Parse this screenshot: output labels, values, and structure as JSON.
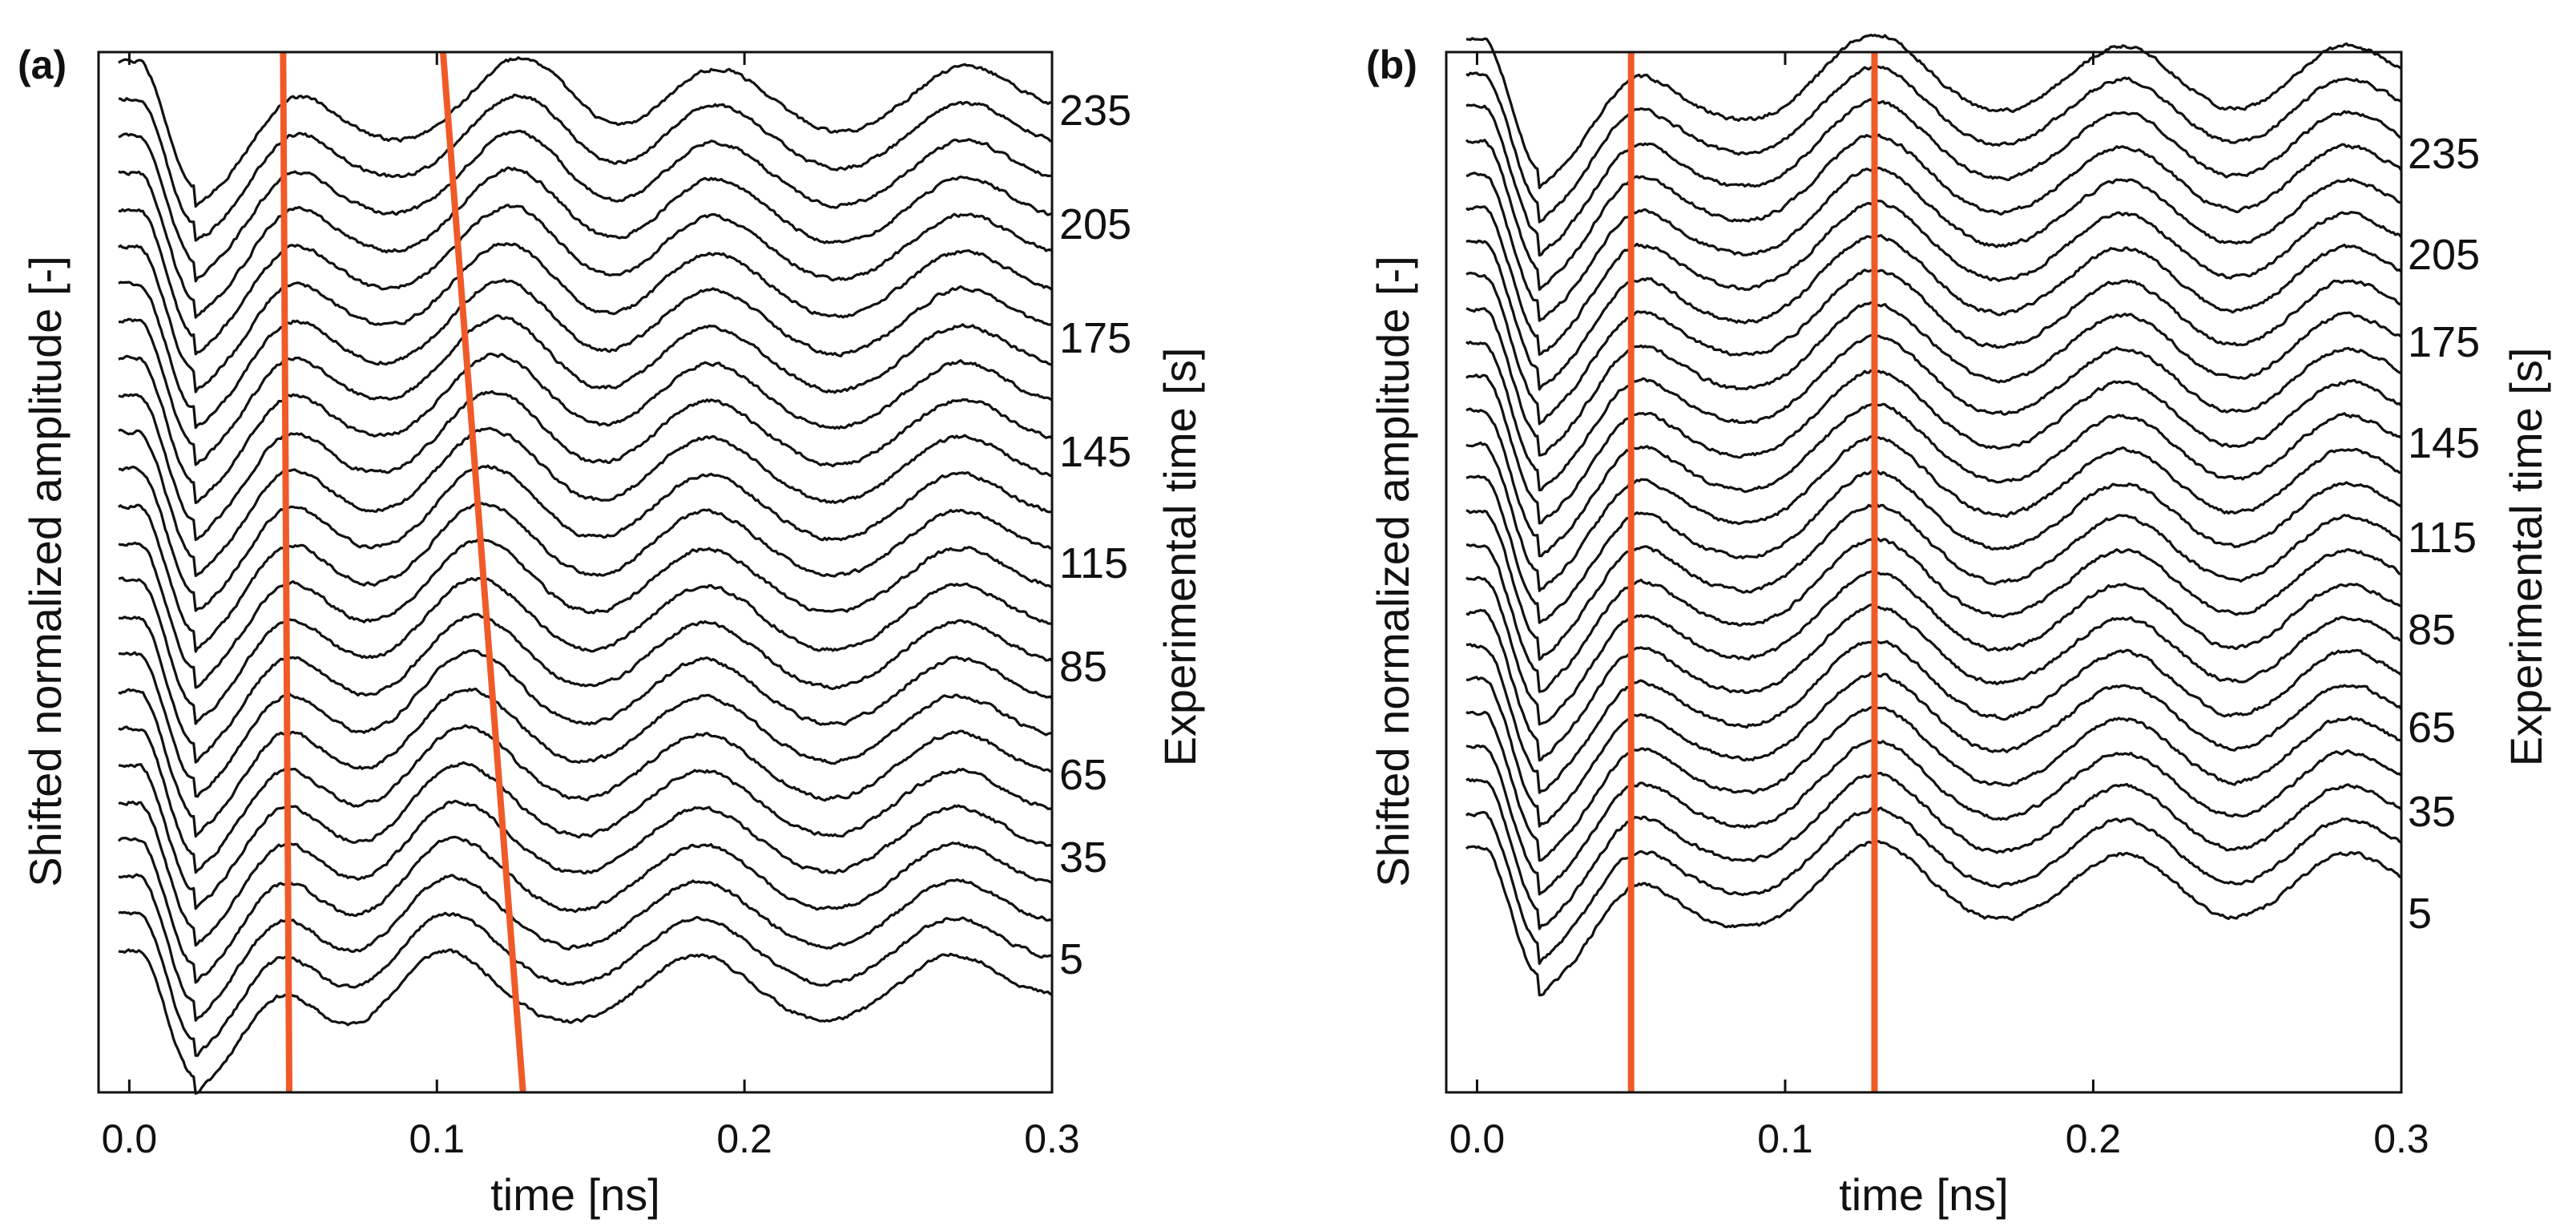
{
  "colors": {
    "trace": "#111111",
    "marker_line": "#f05a28",
    "frame": "#111111",
    "background": "#ffffff"
  },
  "chart_data": [
    {
      "type": "line",
      "panel_label": "(a)",
      "xlabel": "time [ns]",
      "ylabel": "Shifted normalized amplitude [-]",
      "right_label": "Experimental time [s]",
      "xlim": [
        -0.01,
        0.3
      ],
      "x_ticks": [
        "0.0",
        "0.1",
        "0.2",
        "0.3"
      ],
      "x_tick_values": [
        0.0,
        0.1,
        0.2,
        0.3
      ],
      "right_ticks": [
        "235",
        "205",
        "175",
        "145",
        "115",
        "85",
        "65",
        "35",
        "5"
      ],
      "right_tick_values": [
        235,
        205,
        175,
        145,
        115,
        85,
        65,
        35,
        5
      ],
      "trace_count": 25,
      "experimental_time_range": [
        5,
        240
      ],
      "vertical_lines": [
        {
          "x_start": 0.05,
          "x_end": 0.052
        },
        {
          "x_start": 0.102,
          "x_end": 0.128
        }
      ],
      "trace_model": {
        "peaks_early": [
          0.003,
          0.048,
          0.101,
          0.185,
          0.268
        ],
        "peaks_late": [
          0.003,
          0.052,
          0.128,
          0.19,
          0.272
        ],
        "shift_per_trace": 0.112,
        "noise": 0.03
      }
    },
    {
      "type": "line",
      "panel_label": "(b)",
      "xlabel": "time [ns]",
      "ylabel": "Shifted normalized amplitude [-]",
      "right_label": "Experimental time [s]",
      "xlim": [
        -0.01,
        0.3
      ],
      "x_ticks": [
        "0.0",
        "0.1",
        "0.2",
        "0.3"
      ],
      "x_tick_values": [
        0.0,
        0.1,
        0.2,
        0.3
      ],
      "right_ticks": [
        "235",
        "205",
        "175",
        "145",
        "115",
        "85",
        "65",
        "35",
        "5"
      ],
      "right_tick_values": [
        235,
        205,
        175,
        145,
        115,
        85,
        65,
        35,
        5
      ],
      "trace_count": 25,
      "experimental_time_range": [
        5,
        240
      ],
      "vertical_lines": [
        {
          "x_start": 0.05,
          "x_end": 0.05
        },
        {
          "x_start": 0.129,
          "x_end": 0.129
        }
      ],
      "trace_model": {
        "peaks_early": [
          0.002,
          0.05,
          0.129,
          0.21,
          0.282
        ],
        "peaks_late": [
          0.002,
          0.05,
          0.129,
          0.21,
          0.282
        ],
        "shift_per_trace": 0.1,
        "noise": 0.03
      }
    }
  ]
}
